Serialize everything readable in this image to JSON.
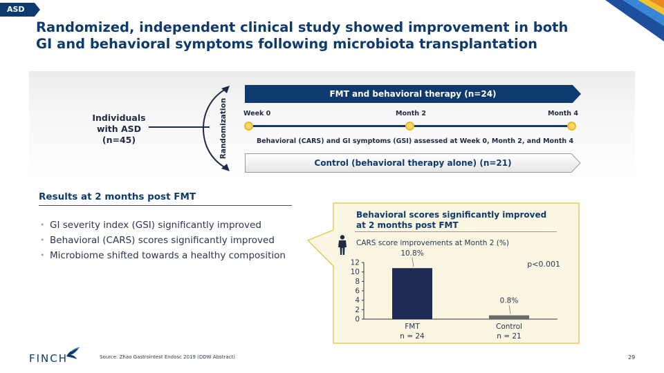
{
  "tag": "ASD",
  "title": {
    "line1": "Randomized, independent clinical study showed improvement in both",
    "line2": "GI and behavioral symptoms following microbiota transplantation"
  },
  "design": {
    "individuals": {
      "line1": "Individuals",
      "line2": "with ASD",
      "line3": "(n=45)"
    },
    "randomization": "Randomization",
    "fmt_arm": "FMT and behavioral therapy  (n=24)",
    "control_arm": "Control (behavioral therapy alone) (n=21)",
    "timepoints": [
      "Week 0",
      "Month 2",
      "Month 4"
    ],
    "assessment": "Behavioral (CARS) and GI symptoms (GSI) assessed at Week 0, Month 2, and Month 4"
  },
  "results": {
    "heading": "Results at 2 months post FMT",
    "bullets": [
      "GI severity index (GSI) significantly improved",
      "Behavioral (CARS) scores significantly improved",
      "Microbiome shifted towards a healthy composition"
    ]
  },
  "panel": {
    "title_line1": "Behavioral scores significantly improved",
    "title_line2": "at 2 months post FMT",
    "icon": "person-icon"
  },
  "chart_data": {
    "type": "bar",
    "title": "CARS score improvements at Month 2 (%)",
    "categories": [
      "FMT",
      "Control"
    ],
    "category_sublabels": [
      "n = 24",
      "n = 21"
    ],
    "values": [
      10.8,
      0.8
    ],
    "data_labels": [
      "10.8%",
      "0.8%"
    ],
    "colors": [
      "#1d2b55",
      "#6b6b6b"
    ],
    "yticks": [
      0,
      2,
      4,
      6,
      8,
      10,
      12
    ],
    "ylim": [
      0,
      12
    ],
    "annotation": "p<0.001",
    "grid": false
  },
  "footer": {
    "logo": "FINCH",
    "source": "Source: Zhao Gastrointest Endosc 2019 (DDW Abstract)",
    "page": "29"
  },
  "colors": {
    "navy": "#0e3a6e",
    "callout_bg": "#fbf6e2",
    "callout_border": "#e8c95a",
    "dot_fill": "#f7d869"
  }
}
